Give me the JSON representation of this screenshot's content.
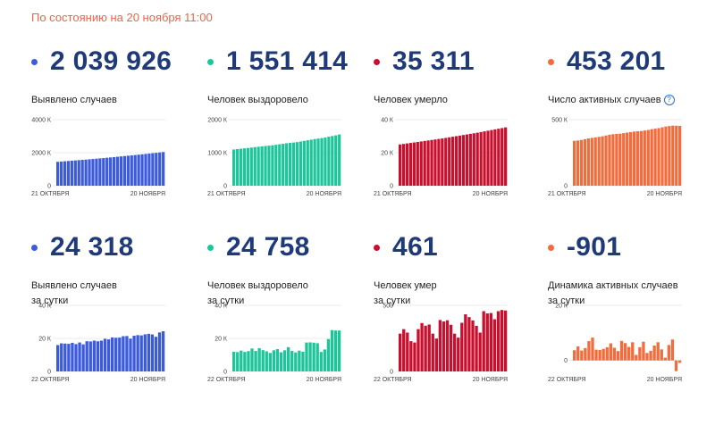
{
  "header": {
    "as_of": "По состоянию на 20 ноября 11:00"
  },
  "cards": [
    {
      "value": "2 039 926",
      "label": [
        "Выявлено случаев"
      ],
      "color": "#3b5bdb",
      "chart_data": {
        "type": "bar",
        "color": "#3b5bdb",
        "x_start": "21 ОКТЯБРЯ",
        "x_end": "20 НОЯБРЯ",
        "yticks": [
          {
            "v": 0,
            "t": "0"
          },
          {
            "v": 2000000,
            "t": "2000 К"
          },
          {
            "v": 4000000,
            "t": "4000 К"
          }
        ],
        "ylim": [
          0,
          4000000
        ],
        "values": [
          1447335,
          1463306,
          1480304,
          1497167,
          1513877,
          1531224,
          1547774,
          1565302,
          1581693,
          1599976,
          1618116,
          1636781,
          1655038,
          1673686,
          1693454,
          1712858,
          1733440,
          1753836,
          1774334,
          1795669,
          1817109,
          1836960,
          1858568,
          1880551,
          1902371,
          1925825,
          1948603,
          1971013,
          1991998,
          2015608,
          2039926
        ]
      }
    },
    {
      "value": "1 551 414",
      "label": [
        "Человек выздоровело"
      ],
      "color": "#1fc59a",
      "chart_data": {
        "type": "bar",
        "color": "#1fc59a",
        "x_start": "21 ОКТЯБРЯ",
        "x_end": "20 НОЯБРЯ",
        "yticks": [
          {
            "v": 0,
            "t": "0"
          },
          {
            "v": 1000000,
            "t": "1000 К"
          },
          {
            "v": 2000000,
            "t": "2000 К"
          }
        ],
        "ylim": [
          0,
          2000000
        ],
        "values": [
          1096000,
          1108000,
          1119000,
          1131000,
          1143000,
          1156000,
          1168000,
          1180000,
          1192000,
          1203000,
          1213000,
          1225000,
          1240000,
          1255000,
          1270000,
          1285000,
          1297000,
          1308000,
          1320000,
          1340000,
          1358000,
          1376000,
          1394000,
          1412000,
          1428000,
          1441000,
          1460000,
          1485000,
          1505000,
          1526000,
          1551414
        ]
      }
    },
    {
      "value": "35 311",
      "label": [
        "Человек умерло"
      ],
      "color": "#c8102e",
      "chart_data": {
        "type": "bar",
        "color": "#c8102e",
        "x_start": "21 ОКТЯБРЯ",
        "x_end": "20 НОЯБРЯ",
        "yticks": [
          {
            "v": 0,
            "t": "0"
          },
          {
            "v": 20000,
            "t": "20 К"
          },
          {
            "v": 40000,
            "t": "40 К"
          }
        ],
        "ylim": [
          0,
          40000
        ],
        "values": [
          25000,
          25300,
          25600,
          25900,
          26200,
          26500,
          26800,
          27100,
          27400,
          27700,
          28000,
          28300,
          28600,
          28950,
          29300,
          29650,
          30000,
          30350,
          30700,
          31050,
          31400,
          31750,
          32100,
          32500,
          32900,
          33300,
          33700,
          34100,
          34500,
          34900,
          35311
        ]
      }
    },
    {
      "value": "453 201",
      "label": [
        "Число активных случаев"
      ],
      "help": true,
      "color": "#f26d3d",
      "chart_data": {
        "type": "bar",
        "color": "#f26d3d",
        "x_start": "21 ОКТЯБРЯ",
        "x_end": "20 НОЯБРЯ",
        "yticks": [
          {
            "v": 0,
            "t": "0"
          },
          {
            "v": 500000,
            "t": "500 К"
          }
        ],
        "ylim": [
          0,
          500000
        ],
        "values": [
          340000,
          342000,
          346000,
          352000,
          358000,
          362000,
          366000,
          370000,
          374000,
          380000,
          386000,
          390000,
          392000,
          394000,
          398000,
          402000,
          406000,
          410000,
          412000,
          414000,
          418000,
          422000,
          428000,
          432000,
          436000,
          442000,
          448000,
          452000,
          455000,
          454100,
          453201
        ]
      }
    },
    {
      "value": "24 318",
      "label": [
        "Выявлено случаев",
        "за сутки"
      ],
      "color": "#3b5bdb",
      "chart_data": {
        "type": "bar",
        "color": "#3b5bdb",
        "x_start": "22 ОКТЯБРЯ",
        "x_end": "20 НОЯБРЯ",
        "yticks": [
          {
            "v": 0,
            "t": "0"
          },
          {
            "v": 20000,
            "t": "20 К"
          },
          {
            "v": 40000,
            "t": "40 К"
          }
        ],
        "ylim": [
          0,
          40000
        ],
        "values": [
          15971,
          16998,
          16863,
          16710,
          17347,
          16550,
          17528,
          16391,
          18283,
          18140,
          18665,
          18257,
          18648,
          19768,
          19404,
          20582,
          20396,
          20498,
          21335,
          21440,
          19851,
          21608,
          21983,
          21820,
          22454,
          22778,
          22410,
          20985,
          23610,
          24318
        ]
      }
    },
    {
      "value": "24 758",
      "label": [
        "Человек выздоровело",
        "за сутки"
      ],
      "color": "#1fc59a",
      "chart_data": {
        "type": "bar",
        "color": "#1fc59a",
        "x_start": "22 ОКТЯБРЯ",
        "x_end": "20 НОЯБРЯ",
        "yticks": [
          {
            "v": 0,
            "t": "0"
          },
          {
            "v": 20000,
            "t": "20 К"
          },
          {
            "v": 40000,
            "t": "40 К"
          }
        ],
        "ylim": [
          0,
          40000
        ],
        "values": [
          11900,
          11700,
          12600,
          11800,
          12300,
          13900,
          12400,
          14100,
          12900,
          12200,
          11200,
          12800,
          13500,
          11600,
          12800,
          14700,
          12400,
          11500,
          12600,
          11900,
          17500,
          17600,
          17400,
          17100,
          11800,
          13300,
          19600,
          25000,
          24800,
          24758
        ]
      }
    },
    {
      "value": "461",
      "label": [
        "Человек умер",
        "за сутки"
      ],
      "color": "#c8102e",
      "chart_data": {
        "type": "bar",
        "color": "#c8102e",
        "x_start": "22 ОКТЯБРЯ",
        "x_end": "20 НОЯБРЯ",
        "yticks": [
          {
            "v": 0,
            "t": "0"
          },
          {
            "v": 500,
            "t": "500"
          }
        ],
        "ylim": [
          0,
          500
        ],
        "values": [
          286,
          320,
          294,
          229,
          219,
          320,
          366,
          346,
          355,
          286,
          249,
          389,
          378,
          387,
          353,
          286,
          256,
          368,
          432,
          411,
          386,
          345,
          294,
          456,
          439,
          442,
          395,
          456,
          465,
          461
        ]
      }
    },
    {
      "value": "-901",
      "label": [
        "Динамика активных случаев",
        "за сутки"
      ],
      "color": "#f26d3d",
      "chart_data": {
        "type": "bar",
        "color": "#f26d3d",
        "x_start": "22 ОКТЯБРЯ",
        "x_end": "20 НОЯБРЯ",
        "yticks": [
          {
            "v": 0,
            "t": "0"
          },
          {
            "v": 20000,
            "t": "20 К"
          }
        ],
        "ylim": [
          -4000,
          20000
        ],
        "values": [
          3700,
          5100,
          3600,
          4500,
          7000,
          8300,
          3900,
          3800,
          4200,
          4800,
          6200,
          4600,
          3400,
          7100,
          6300,
          4900,
          6600,
          2000,
          4800,
          6800,
          2700,
          3500,
          5400,
          6600,
          4000,
          1000,
          5600,
          7600,
          -3900,
          -901
        ]
      }
    }
  ]
}
